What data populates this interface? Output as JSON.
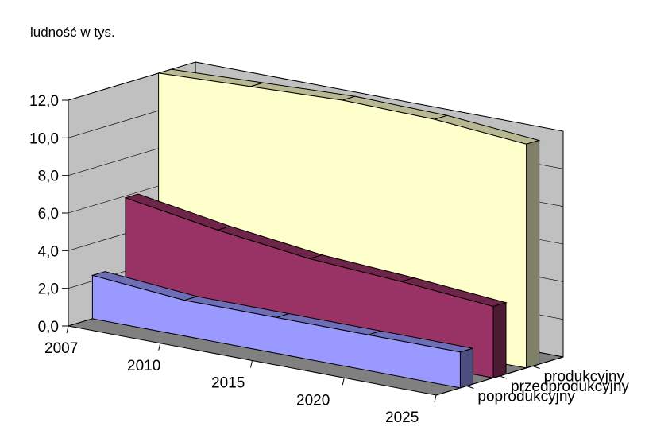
{
  "chart_data": {
    "type": "area",
    "ylabel": "ludność w tys.",
    "ylim": [
      0,
      12
    ],
    "y_ticks": [
      0,
      2,
      4,
      6,
      8,
      10,
      12
    ],
    "y_tick_labels": [
      "0,0",
      "2,0",
      "4,0",
      "6,0",
      "8,0",
      "10,0",
      "12,0"
    ],
    "categories": [
      "2007",
      "2010",
      "2015",
      "2020",
      "2025"
    ],
    "series": [
      {
        "name": "produkcyjny",
        "values": [
          12.0,
          12.2,
          12.4,
          12.3,
          11.9
        ],
        "color": "#ffffcc"
      },
      {
        "name": "przedprodukcyjny",
        "values": [
          5.9,
          5.1,
          4.5,
          4.2,
          3.8
        ],
        "color": "#993366"
      },
      {
        "name": "poprodukcyjny",
        "values": [
          2.3,
          1.9,
          1.9,
          1.9,
          1.9
        ],
        "color": "#9999ff"
      }
    ],
    "grid": false,
    "legend_position": "right"
  }
}
